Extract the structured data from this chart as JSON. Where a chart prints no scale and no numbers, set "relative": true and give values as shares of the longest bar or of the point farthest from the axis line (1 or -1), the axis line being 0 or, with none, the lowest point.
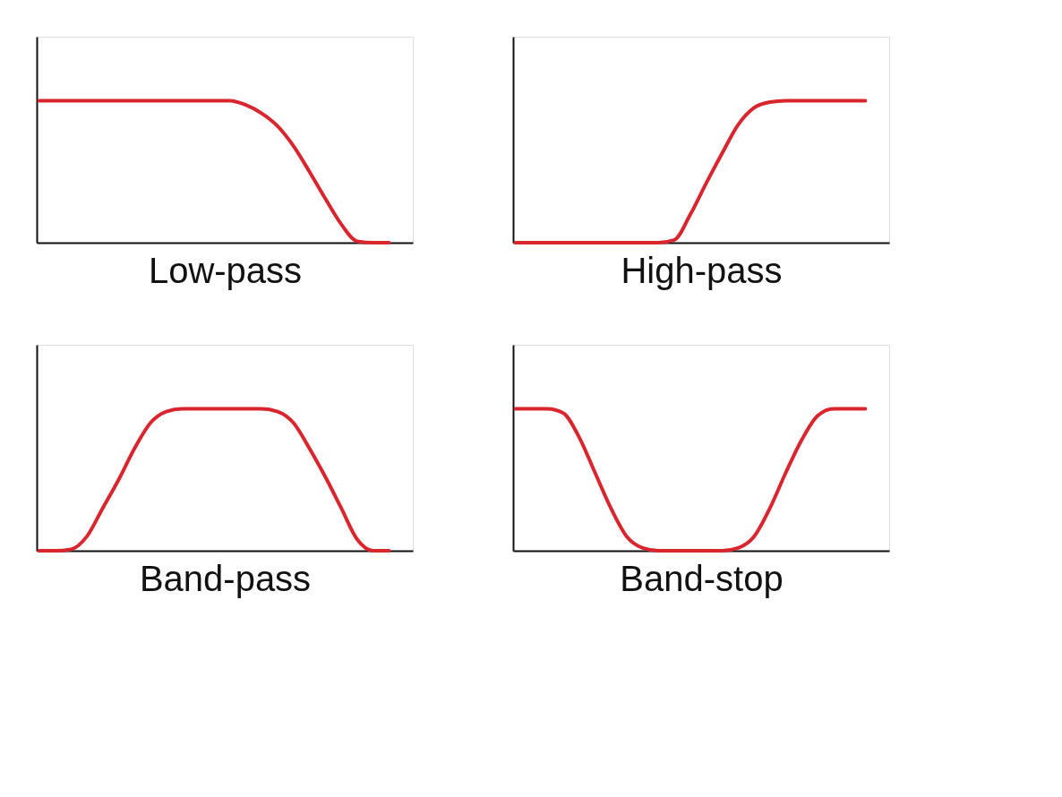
{
  "chart_data": [
    {
      "type": "line",
      "xlabel": "Low-pass",
      "relative": true,
      "tick_labels": false,
      "categories": [
        null,
        null,
        null,
        null,
        null,
        null,
        null,
        null,
        null,
        null,
        null,
        null,
        null,
        null,
        null,
        null,
        null,
        null,
        null,
        null,
        null,
        null,
        null
      ],
      "series": [
        {
          "color": "#d9262e",
          "values": [
            1,
            1,
            1,
            1,
            1,
            1,
            1,
            1,
            1,
            1,
            1,
            1,
            1,
            0.97,
            0.91,
            0.82,
            0.68,
            0.5,
            0.31,
            0.13,
            0.01,
            0,
            0
          ]
        }
      ]
    },
    {
      "type": "line",
      "xlabel": "High-pass",
      "relative": true,
      "tick_labels": false,
      "categories": [
        null,
        null,
        null,
        null,
        null,
        null,
        null,
        null,
        null,
        null,
        null,
        null,
        null,
        null,
        null,
        null,
        null,
        null,
        null,
        null,
        null,
        null,
        null
      ],
      "series": [
        {
          "color": "#d9262e",
          "values": [
            0,
            0,
            0,
            0,
            0,
            0,
            0,
            0,
            0,
            0,
            0.02,
            0.2,
            0.42,
            0.63,
            0.83,
            0.95,
            0.99,
            1,
            1,
            1,
            1,
            1,
            1
          ]
        }
      ]
    },
    {
      "type": "line",
      "xlabel": "Band-pass",
      "relative": true,
      "tick_labels": false,
      "categories": [
        null,
        null,
        null,
        null,
        null,
        null,
        null,
        null,
        null,
        null,
        null,
        null,
        null,
        null,
        null,
        null,
        null,
        null,
        null,
        null,
        null,
        null,
        null
      ],
      "series": [
        {
          "color": "#d9262e",
          "values": [
            0,
            0,
            0.01,
            0.1,
            0.3,
            0.5,
            0.72,
            0.9,
            0.98,
            1,
            1,
            1,
            1,
            1,
            1,
            0.98,
            0.9,
            0.72,
            0.52,
            0.3,
            0.08,
            0,
            0
          ]
        }
      ]
    },
    {
      "type": "line",
      "xlabel": "Band-stop",
      "relative": true,
      "tick_labels": false,
      "categories": [
        null,
        null,
        null,
        null,
        null,
        null,
        null,
        null,
        null,
        null,
        null,
        null,
        null,
        null,
        null,
        null,
        null,
        null,
        null,
        null,
        null,
        null,
        null
      ],
      "series": [
        {
          "color": "#d9262e",
          "values": [
            1,
            1,
            1,
            0.97,
            0.8,
            0.55,
            0.3,
            0.1,
            0.02,
            0,
            0,
            0,
            0,
            0,
            0.02,
            0.1,
            0.3,
            0.55,
            0.78,
            0.95,
            1,
            1,
            1
          ]
        }
      ]
    }
  ]
}
